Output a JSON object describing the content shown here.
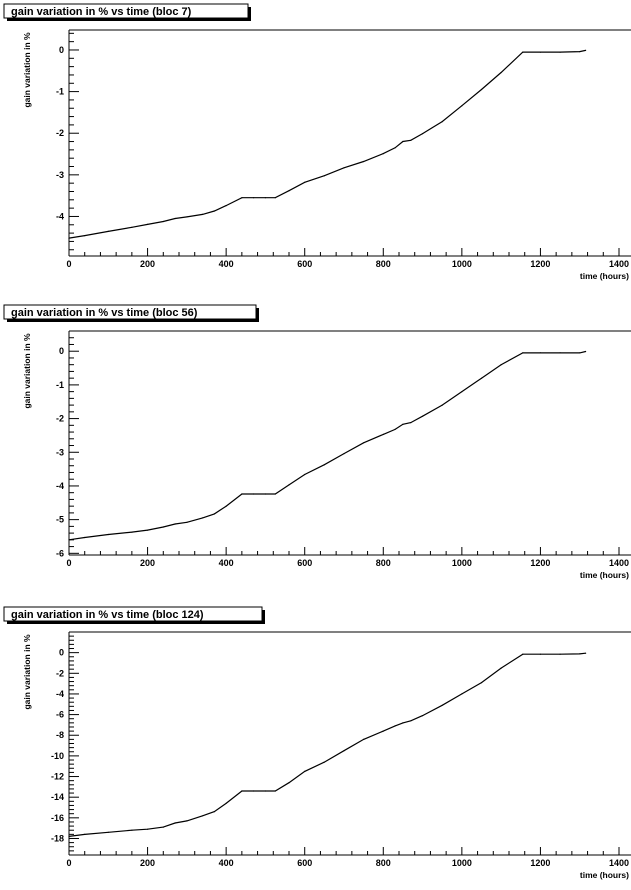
{
  "chart_data": [
    {
      "type": "line",
      "title": "gain variation in % vs time  (bloc 7)",
      "xlabel": "time (hours)",
      "ylabel": "gain variation in %",
      "xlim": [
        0,
        1440
      ],
      "ylim": [
        -4.95,
        0.48
      ],
      "xticks": [
        0,
        200,
        400,
        600,
        800,
        1000,
        1200,
        1400
      ],
      "yticks": [
        0,
        -1,
        -2,
        -3,
        -4
      ],
      "x": [
        0,
        40,
        100,
        160,
        200,
        240,
        270,
        300,
        340,
        370,
        400,
        440,
        470,
        500,
        525,
        560,
        600,
        650,
        700,
        750,
        800,
        830,
        850,
        870,
        900,
        950,
        1000,
        1050,
        1100,
        1155,
        1200,
        1250,
        1300,
        1315
      ],
      "values": [
        -4.52,
        -4.46,
        -4.36,
        -4.26,
        -4.19,
        -4.12,
        -4.05,
        -4.01,
        -3.95,
        -3.87,
        -3.74,
        -3.55,
        -3.55,
        -3.55,
        -3.55,
        -3.38,
        -3.18,
        -3.02,
        -2.83,
        -2.68,
        -2.49,
        -2.35,
        -2.2,
        -2.17,
        -2.01,
        -1.72,
        -1.34,
        -0.95,
        -0.54,
        -0.05,
        -0.05,
        -0.05,
        -0.04,
        -0.01
      ]
    },
    {
      "type": "line",
      "title": "gain variation in % vs time  (bloc 56)",
      "xlabel": "time (hours)",
      "ylabel": "gain variation in %",
      "xlim": [
        0,
        1440
      ],
      "ylim": [
        -6.05,
        0.6
      ],
      "xticks": [
        0,
        200,
        400,
        600,
        800,
        1000,
        1200,
        1400
      ],
      "yticks": [
        0,
        -1,
        -2,
        -3,
        -4,
        -5,
        -6
      ],
      "x": [
        0,
        40,
        100,
        160,
        200,
        240,
        270,
        300,
        340,
        370,
        400,
        440,
        470,
        500,
        525,
        560,
        600,
        650,
        700,
        750,
        800,
        830,
        850,
        870,
        900,
        950,
        1000,
        1050,
        1100,
        1155,
        1200,
        1250,
        1300,
        1315
      ],
      "values": [
        -5.6,
        -5.53,
        -5.44,
        -5.37,
        -5.31,
        -5.22,
        -5.13,
        -5.08,
        -4.95,
        -4.83,
        -4.6,
        -4.24,
        -4.24,
        -4.24,
        -4.24,
        -3.97,
        -3.66,
        -3.37,
        -3.04,
        -2.72,
        -2.47,
        -2.32,
        -2.17,
        -2.12,
        -1.93,
        -1.6,
        -1.2,
        -0.8,
        -0.4,
        -0.05,
        -0.05,
        -0.05,
        -0.05,
        -0.01
      ]
    },
    {
      "type": "line",
      "title": "gain variation in % vs time  (bloc 124)",
      "xlabel": "time (hours)",
      "ylabel": "gain variation in %",
      "xlim": [
        0,
        1440
      ],
      "ylim": [
        -19.6,
        2.0
      ],
      "xticks": [
        0,
        200,
        400,
        600,
        800,
        1000,
        1200,
        1400
      ],
      "yticks": [
        0,
        -2,
        -4,
        -6,
        -8,
        -10,
        -12,
        -14,
        -16,
        -18
      ],
      "x": [
        0,
        40,
        100,
        160,
        200,
        240,
        270,
        300,
        340,
        370,
        400,
        440,
        470,
        500,
        525,
        560,
        600,
        650,
        700,
        750,
        800,
        830,
        850,
        870,
        900,
        950,
        1000,
        1050,
        1100,
        1155,
        1200,
        1250,
        1300,
        1315
      ],
      "values": [
        -17.8,
        -17.6,
        -17.4,
        -17.2,
        -17.1,
        -16.9,
        -16.5,
        -16.3,
        -15.8,
        -15.4,
        -14.6,
        -13.4,
        -13.4,
        -13.4,
        -13.4,
        -12.6,
        -11.5,
        -10.6,
        -9.5,
        -8.4,
        -7.6,
        -7.1,
        -6.8,
        -6.6,
        -6.1,
        -5.1,
        -4.0,
        -2.9,
        -1.5,
        -0.15,
        -0.15,
        -0.15,
        -0.12,
        -0.05
      ]
    }
  ]
}
